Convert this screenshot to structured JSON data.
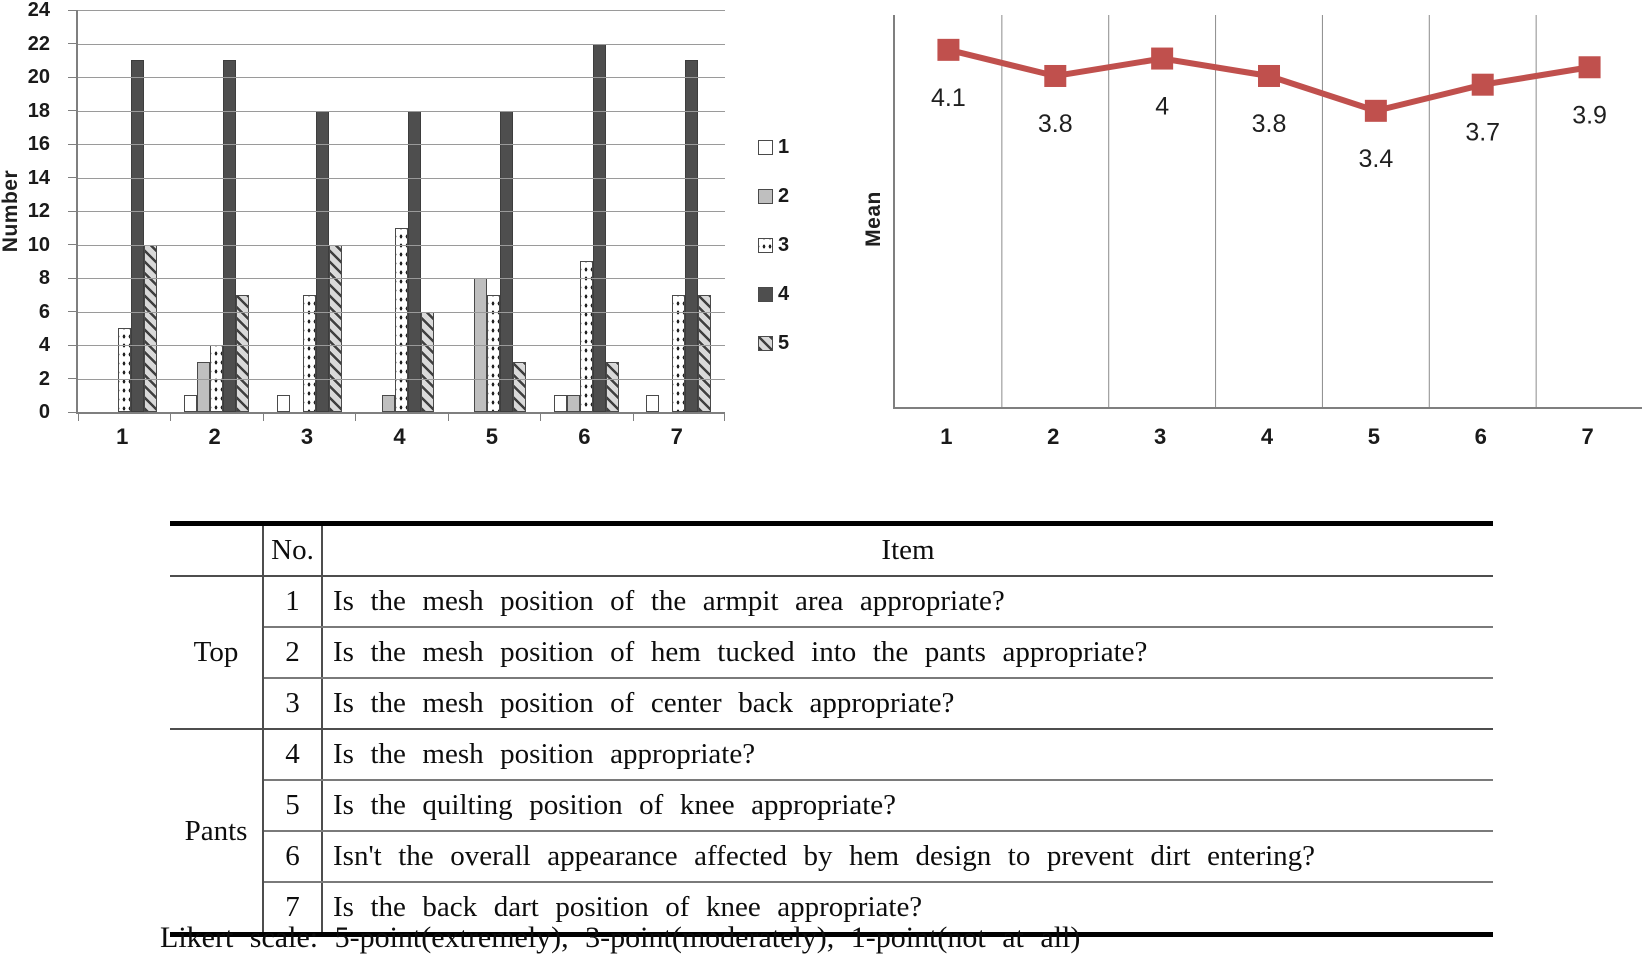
{
  "chart_data": [
    {
      "type": "bar",
      "title": "",
      "ylabel": "Number",
      "xlabel": "",
      "categories": [
        "1",
        "2",
        "3",
        "4",
        "5",
        "6",
        "7"
      ],
      "y_ticks": [
        0,
        2,
        4,
        6,
        8,
        10,
        12,
        14,
        16,
        18,
        20,
        22,
        24
      ],
      "ylim": [
        0,
        24
      ],
      "grid": "horizontal",
      "legend_position": "right",
      "series": [
        {
          "name": "1",
          "style": "white-empty",
          "values": [
            0,
            1,
            1,
            0,
            0,
            1,
            1
          ]
        },
        {
          "name": "2",
          "style": "solid-light-gray",
          "values": [
            0,
            3,
            0,
            1,
            8,
            1,
            0
          ]
        },
        {
          "name": "3",
          "style": "white-dotted",
          "values": [
            5,
            4,
            7,
            11,
            7,
            9,
            7
          ]
        },
        {
          "name": "4",
          "style": "solid-dark-gray",
          "values": [
            21,
            21,
            18,
            18,
            18,
            22,
            21
          ]
        },
        {
          "name": "5",
          "style": "diagonal-hatch",
          "values": [
            10,
            7,
            10,
            6,
            3,
            3,
            7
          ]
        }
      ],
      "colors": {
        "dark_bar": "#4e4e4e",
        "light_bar": "#bfbfbf",
        "hatch_bg": "#d9d9d9",
        "axis": "#7f7f7f",
        "gridline": "#9a9a9a"
      }
    },
    {
      "type": "line",
      "title": "",
      "ylabel": "Mean",
      "xlabel": "",
      "categories": [
        "1",
        "2",
        "3",
        "4",
        "5",
        "6",
        "7"
      ],
      "values": [
        4.1,
        3.8,
        4,
        3.8,
        3.4,
        3.7,
        3.9
      ],
      "point_labels": [
        "4.1",
        "3.8",
        "4",
        "3.8",
        "3.4",
        "3.7",
        "3.9"
      ],
      "ylim": [
        0,
        4.5
      ],
      "grid": "vertical",
      "marker": "square",
      "line_color": "#C0504D",
      "label_color": "#1f1f1f"
    },
    {
      "type": "table",
      "columns": [
        "",
        "No.",
        "Item"
      ],
      "groups": [
        {
          "label": "Top",
          "rows": [
            {
              "no": "1",
              "item": "Is the mesh position of the armpit area appropriate?"
            },
            {
              "no": "2",
              "item": "Is the mesh position of hem tucked into the pants appropriate?"
            },
            {
              "no": "3",
              "item": "Is the mesh position of center back appropriate?"
            }
          ]
        },
        {
          "label": "Pants",
          "rows": [
            {
              "no": "4",
              "item": "Is the mesh position appropriate?"
            },
            {
              "no": "5",
              "item": "Is the quilting position of knee appropriate?"
            },
            {
              "no": "6",
              "item": "Isn't the overall appearance affected by hem design to prevent dirt entering?"
            },
            {
              "no": "7",
              "item": "Is the back dart position of knee appropriate?"
            }
          ]
        }
      ],
      "footnote": "Likert scale:  5-point(extremely),  3-point(moderately),  1-point(not at all)"
    }
  ]
}
